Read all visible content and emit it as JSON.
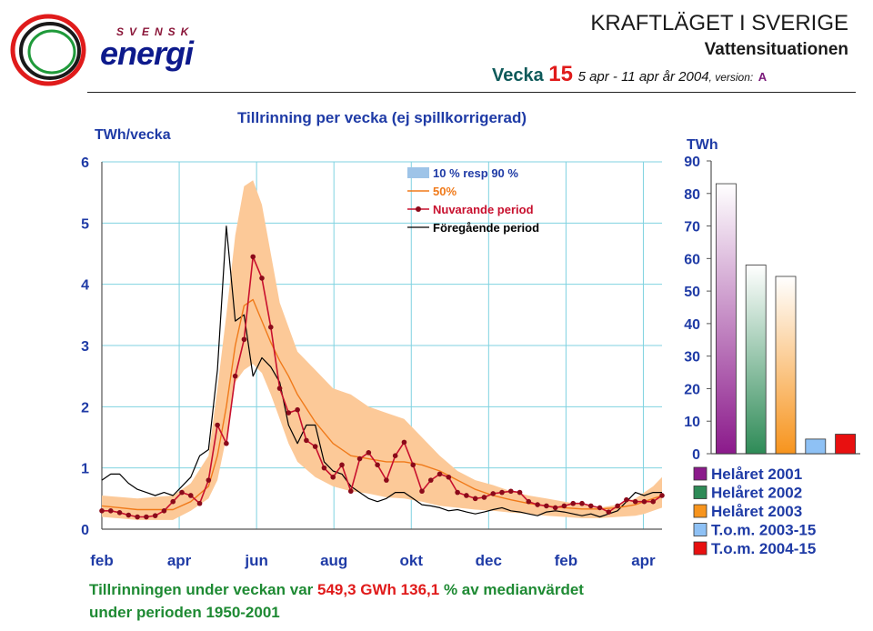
{
  "logo": {
    "brand": "SVENSK",
    "name": "energi"
  },
  "header": {
    "title": "KRAFTLÄGET I SVERIGE",
    "subtitle": "Vattensituationen",
    "week_label": "Vecka",
    "week_number": "15",
    "date_range": "5 apr - 11 apr år 2004",
    "version_label": ", version:",
    "version_value": "A"
  },
  "footer": {
    "line1_prefix": "Tillrinningen under veckan var",
    "gwh_value": "549,3",
    "gwh_unit": "GWh",
    "percent_value": "136,1",
    "line1_suffix": "% av medianvärdet",
    "line2": "under perioden 1950-2001"
  },
  "colors": {
    "band": "#fcc998",
    "band_legend": "#9ec4e8",
    "median": "#f07a1a",
    "current": "#c8102e",
    "current_marker": "#8b0a1a",
    "previous": "#000000",
    "axis_text": "#1f3ba6",
    "title_text": "#1f3ba6"
  },
  "chart_data": [
    {
      "type": "line",
      "title": "Tillrinning per vecka (ej spillkorrigerad)",
      "ylabel": "TWh/vecka",
      "ylim": [
        0,
        6
      ],
      "yticks": [
        "0",
        "1",
        "2",
        "3",
        "4",
        "5",
        "6"
      ],
      "xlim": [
        0,
        63
      ],
      "xticks": [
        {
          "x": 0,
          "label": "feb"
        },
        {
          "x": 8.7,
          "label": "apr"
        },
        {
          "x": 17.4,
          "label": "jun"
        },
        {
          "x": 26.1,
          "label": "aug"
        },
        {
          "x": 34.8,
          "label": "okt"
        },
        {
          "x": 43.5,
          "label": "dec"
        },
        {
          "x": 52.2,
          "label": "feb"
        },
        {
          "x": 60.9,
          "label": "apr"
        }
      ],
      "grid": true,
      "legend_position": "top-right",
      "band": {
        "name": "10 % resp 90 %",
        "x": [
          0,
          4,
          8,
          10,
          12,
          13,
          14,
          15,
          16,
          17,
          18,
          19,
          20,
          21,
          22,
          24,
          26,
          28,
          30,
          32,
          34,
          36,
          38,
          40,
          42,
          44,
          46,
          48,
          50,
          52,
          54,
          56,
          58,
          60,
          61,
          62,
          63
        ],
        "lower": [
          0.2,
          0.15,
          0.15,
          0.3,
          0.5,
          0.8,
          1.5,
          2.4,
          2.6,
          2.7,
          2.55,
          2.2,
          1.8,
          1.4,
          1.1,
          0.85,
          0.7,
          0.62,
          0.58,
          0.52,
          0.5,
          0.45,
          0.38,
          0.35,
          0.32,
          0.3,
          0.27,
          0.25,
          0.22,
          0.2,
          0.18,
          0.18,
          0.2,
          0.22,
          0.25,
          0.3,
          0.35
        ],
        "upper": [
          0.55,
          0.5,
          0.55,
          0.75,
          1.2,
          2.3,
          3.5,
          4.8,
          5.6,
          5.7,
          5.3,
          4.5,
          3.7,
          3.3,
          2.9,
          2.6,
          2.3,
          2.2,
          2.0,
          1.9,
          1.8,
          1.5,
          1.2,
          0.95,
          0.8,
          0.72,
          0.62,
          0.55,
          0.5,
          0.45,
          0.4,
          0.35,
          0.4,
          0.5,
          0.6,
          0.7,
          0.85
        ]
      },
      "series": [
        {
          "name": "50%",
          "x": [
            0,
            4,
            8,
            10,
            12,
            13,
            14,
            15,
            16,
            17,
            18,
            19,
            20,
            21,
            22,
            24,
            26,
            28,
            30,
            32,
            34,
            36,
            38,
            40,
            42,
            44,
            46,
            48,
            50,
            52,
            54,
            56,
            58,
            60,
            61,
            62,
            63
          ],
          "y": [
            0.38,
            0.32,
            0.32,
            0.45,
            0.7,
            1.2,
            2.0,
            3.0,
            3.65,
            3.75,
            3.4,
            3.05,
            2.75,
            2.5,
            2.2,
            1.75,
            1.4,
            1.2,
            1.15,
            1.1,
            1.1,
            1.05,
            0.95,
            0.8,
            0.65,
            0.55,
            0.48,
            0.42,
            0.38,
            0.35,
            0.33,
            0.33,
            0.35,
            0.4,
            0.45,
            0.5,
            0.55
          ]
        },
        {
          "name": "Nuvarande period",
          "x": [
            0,
            1,
            2,
            3,
            4,
            5,
            6,
            7,
            8,
            9,
            10,
            11,
            12,
            13,
            14,
            15,
            16,
            17,
            18,
            19,
            20,
            21,
            22,
            23,
            24,
            25,
            26,
            27,
            28,
            29,
            30,
            31,
            32,
            33,
            34,
            35,
            36,
            37,
            38,
            39,
            40,
            41,
            42,
            43,
            44,
            45,
            46,
            47,
            48,
            49,
            50,
            51,
            52,
            53,
            54,
            55,
            56,
            57,
            58,
            59,
            60,
            61,
            62,
            63
          ],
          "y": [
            0.3,
            0.3,
            0.27,
            0.23,
            0.2,
            0.2,
            0.22,
            0.3,
            0.45,
            0.6,
            0.55,
            0.42,
            0.8,
            1.7,
            1.4,
            2.5,
            3.1,
            4.45,
            4.1,
            3.3,
            2.3,
            1.9,
            1.95,
            1.45,
            1.35,
            1.0,
            0.85,
            1.05,
            0.62,
            1.15,
            1.25,
            1.05,
            0.8,
            1.2,
            1.42,
            1.05,
            0.62,
            0.8,
            0.9,
            0.85,
            0.6,
            0.55,
            0.5,
            0.52,
            0.58,
            0.6,
            0.62,
            0.6,
            0.45,
            0.4,
            0.38,
            0.35,
            0.38,
            0.42,
            0.42,
            0.38,
            0.35,
            0.28,
            0.38,
            0.48,
            0.45,
            0.45,
            0.45,
            0.55
          ]
        },
        {
          "name": "Föregående period",
          "x": [
            0,
            1,
            2,
            3,
            4,
            5,
            6,
            7,
            8,
            9,
            10,
            11,
            12,
            13,
            14,
            15,
            16,
            17,
            18,
            19,
            20,
            21,
            22,
            23,
            24,
            25,
            26,
            27,
            28,
            29,
            30,
            31,
            32,
            33,
            34,
            35,
            36,
            37,
            38,
            39,
            40,
            41,
            42,
            43,
            44,
            45,
            46,
            47,
            48,
            49,
            50,
            51,
            52,
            53,
            54,
            55,
            56,
            57,
            58,
            59,
            60,
            61,
            62,
            63
          ],
          "y": [
            0.8,
            0.9,
            0.9,
            0.75,
            0.65,
            0.6,
            0.55,
            0.6,
            0.55,
            0.7,
            0.85,
            1.2,
            1.3,
            2.6,
            4.95,
            3.4,
            3.5,
            2.5,
            2.8,
            2.65,
            2.4,
            1.7,
            1.4,
            1.7,
            1.7,
            1.1,
            0.95,
            0.9,
            0.7,
            0.6,
            0.5,
            0.45,
            0.5,
            0.6,
            0.6,
            0.5,
            0.4,
            0.38,
            0.35,
            0.3,
            0.32,
            0.28,
            0.25,
            0.28,
            0.32,
            0.35,
            0.3,
            0.28,
            0.25,
            0.22,
            0.28,
            0.3,
            0.28,
            0.25,
            0.22,
            0.25,
            0.2,
            0.25,
            0.3,
            0.45,
            0.6,
            0.55,
            0.6,
            0.6
          ]
        }
      ]
    },
    {
      "type": "bar",
      "ylabel": "TWh",
      "ylim": [
        0,
        90
      ],
      "yticks": [
        "0",
        "10",
        "20",
        "30",
        "40",
        "50",
        "60",
        "70",
        "80",
        "90"
      ],
      "grid": false,
      "legend_position": "bottom",
      "categories": [
        "Helåret 2001",
        "Helåret 2002",
        "Helåret 2003",
        "T.o.m. 2003-15",
        "T.o.m. 2004-15"
      ],
      "values": [
        83,
        58,
        54.5,
        4.5,
        6
      ],
      "colors": [
        "#8b1a8b",
        "#2e8b57",
        "#f7941d",
        "#8ec1f5",
        "#e81010"
      ]
    }
  ]
}
